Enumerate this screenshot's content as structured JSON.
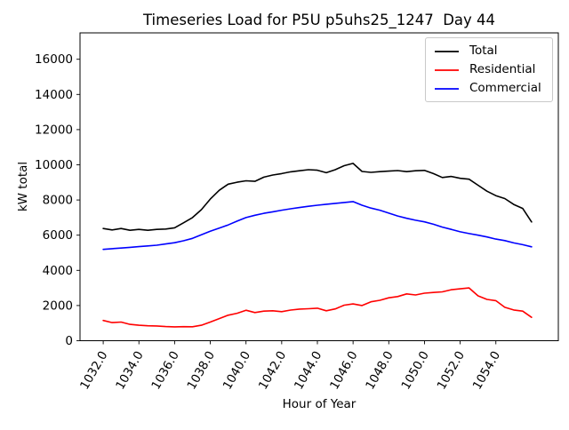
{
  "chart_data": {
    "type": "line",
    "title": "Timeseries Load for P5U p5uhs25_1247  Day 44",
    "xlabel": "Hour of Year",
    "ylabel": "kW total",
    "xlim": [
      1030.7,
      1057.5
    ],
    "ylim": [
      0,
      17500
    ],
    "grid": false,
    "legend_position": "upper right",
    "xticks": {
      "values": [
        1032,
        1034,
        1036,
        1038,
        1040,
        1042,
        1044,
        1046,
        1048,
        1050,
        1052,
        1054
      ],
      "labels": [
        "1032.0",
        "1034.0",
        "1036.0",
        "1038.0",
        "1040.0",
        "1042.0",
        "1044.0",
        "1046.0",
        "1048.0",
        "1050.0",
        "1052.0",
        "1054.0"
      ],
      "rotation_deg": 60
    },
    "yticks": {
      "values": [
        0,
        2000,
        4000,
        6000,
        8000,
        10000,
        12000,
        14000,
        16000
      ],
      "labels": [
        "0",
        "2000",
        "4000",
        "6000",
        "8000",
        "10000",
        "12000",
        "14000",
        "16000"
      ]
    },
    "x": [
      1032.0,
      1032.5,
      1033.0,
      1033.5,
      1034.0,
      1034.5,
      1035.0,
      1035.5,
      1036.0,
      1036.5,
      1037.0,
      1037.5,
      1038.0,
      1038.5,
      1039.0,
      1039.5,
      1040.0,
      1040.5,
      1041.0,
      1041.5,
      1042.0,
      1042.5,
      1043.0,
      1043.5,
      1044.0,
      1044.5,
      1045.0,
      1045.5,
      1046.0,
      1046.5,
      1047.0,
      1047.5,
      1048.0,
      1048.5,
      1049.0,
      1049.5,
      1050.0,
      1050.5,
      1051.0,
      1051.5,
      1052.0,
      1052.5,
      1053.0,
      1053.5,
      1054.0,
      1054.5,
      1055.0,
      1055.5,
      1056.0
    ],
    "series": [
      {
        "name": "Total",
        "color": "#000000",
        "values": [
          6380,
          6300,
          6380,
          6280,
          6330,
          6280,
          6330,
          6350,
          6420,
          6700,
          7000,
          7450,
          8050,
          8550,
          8900,
          9010,
          9090,
          9060,
          9300,
          9420,
          9500,
          9600,
          9660,
          9720,
          9690,
          9550,
          9720,
          9950,
          10080,
          9620,
          9570,
          9610,
          9640,
          9670,
          9610,
          9660,
          9680,
          9500,
          9280,
          9340,
          9230,
          9180,
          8840,
          8500,
          8250,
          8080,
          7750,
          7520,
          6750
        ]
      },
      {
        "name": "Residential",
        "color": "#ff0000",
        "values": [
          1150,
          1030,
          1060,
          930,
          880,
          850,
          840,
          805,
          790,
          800,
          795,
          880,
          1060,
          1260,
          1450,
          1560,
          1730,
          1600,
          1680,
          1700,
          1650,
          1740,
          1800,
          1820,
          1850,
          1700,
          1810,
          2020,
          2090,
          2000,
          2210,
          2300,
          2440,
          2510,
          2660,
          2600,
          2700,
          2740,
          2780,
          2900,
          2950,
          3000,
          2550,
          2350,
          2280,
          1900,
          1750,
          1680,
          1330
        ]
      },
      {
        "name": "Commercial",
        "color": "#0000ff",
        "values": [
          5190,
          5230,
          5270,
          5310,
          5350,
          5390,
          5430,
          5500,
          5570,
          5680,
          5820,
          6020,
          6220,
          6400,
          6580,
          6800,
          7000,
          7130,
          7240,
          7330,
          7420,
          7500,
          7570,
          7640,
          7700,
          7760,
          7810,
          7860,
          7910,
          7700,
          7540,
          7420,
          7250,
          7090,
          6960,
          6850,
          6760,
          6620,
          6460,
          6330,
          6190,
          6090,
          6000,
          5900,
          5780,
          5690,
          5560,
          5460,
          5340
        ]
      }
    ]
  },
  "colors": {
    "background": "#ffffff",
    "axis": "#000000",
    "legend_border": "#c9c9c9"
  }
}
